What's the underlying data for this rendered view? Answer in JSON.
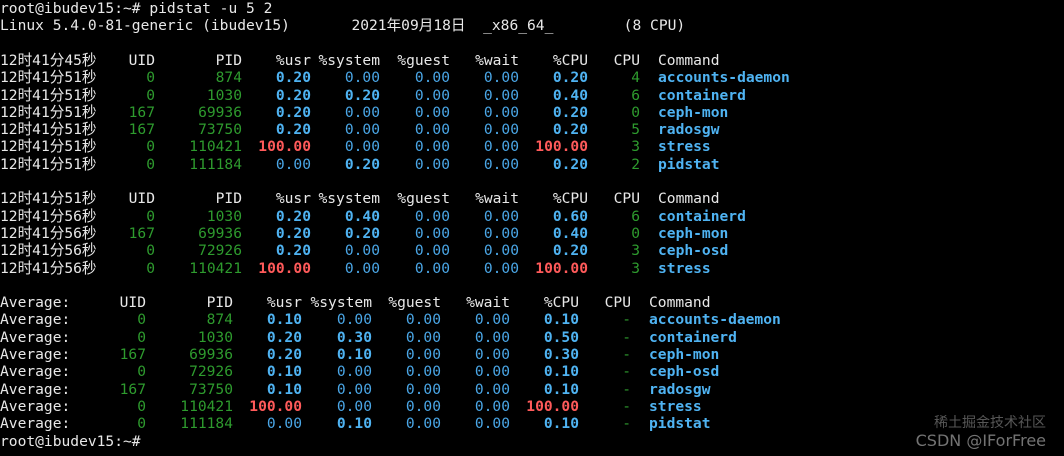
{
  "terminal": {
    "prompt_command": "root@ibudev15:~# pidstat -u 5 2",
    "system_info": "Linux 5.4.0-81-generic (ibudev15)       2021年09月18日  _x86_64_        (8 CPU)",
    "final_prompt": "root@ibudev15:~# "
  },
  "header": {
    "uid": "UID",
    "pid": "PID",
    "usr": "%usr",
    "system": "%system",
    "guest": "%guest",
    "wait": "%wait",
    "cpu_pct": "%CPU",
    "cpu": "CPU",
    "command": "Command"
  },
  "sample1": {
    "time": "12时41分45秒",
    "rows": [
      {
        "time": "12时41分51秒",
        "uid": "0",
        "pid": "874",
        "usr": "0.20",
        "system": "0.00",
        "guest": "0.00",
        "wait": "0.00",
        "cpu_pct": "0.20",
        "cpu": "4",
        "command": "accounts-daemon",
        "usr_red": false,
        "sys_hl": false,
        "cpu_red": false
      },
      {
        "time": "12时41分51秒",
        "uid": "0",
        "pid": "1030",
        "usr": "0.20",
        "system": "0.20",
        "guest": "0.00",
        "wait": "0.00",
        "cpu_pct": "0.40",
        "cpu": "6",
        "command": "containerd",
        "usr_red": false,
        "sys_hl": true,
        "cpu_red": false
      },
      {
        "time": "12时41分51秒",
        "uid": "167",
        "pid": "69936",
        "usr": "0.20",
        "system": "0.00",
        "guest": "0.00",
        "wait": "0.00",
        "cpu_pct": "0.20",
        "cpu": "0",
        "command": "ceph-mon",
        "usr_red": false,
        "sys_hl": false,
        "cpu_red": false
      },
      {
        "time": "12时41分51秒",
        "uid": "167",
        "pid": "73750",
        "usr": "0.20",
        "system": "0.00",
        "guest": "0.00",
        "wait": "0.00",
        "cpu_pct": "0.20",
        "cpu": "5",
        "command": "radosgw",
        "usr_red": false,
        "sys_hl": false,
        "cpu_red": false
      },
      {
        "time": "12时41分51秒",
        "uid": "0",
        "pid": "110421",
        "usr": "100.00",
        "system": "0.00",
        "guest": "0.00",
        "wait": "0.00",
        "cpu_pct": "100.00",
        "cpu": "3",
        "command": "stress",
        "usr_red": true,
        "sys_hl": false,
        "cpu_red": true
      },
      {
        "time": "12时41分51秒",
        "uid": "0",
        "pid": "111184",
        "usr": "0.00",
        "system": "0.20",
        "guest": "0.00",
        "wait": "0.00",
        "cpu_pct": "0.20",
        "cpu": "2",
        "command": "pidstat",
        "usr_red": false,
        "sys_hl": true,
        "cpu_red": false
      }
    ]
  },
  "sample2": {
    "time": "12时41分51秒",
    "rows": [
      {
        "time": "12时41分56秒",
        "uid": "0",
        "pid": "1030",
        "usr": "0.20",
        "system": "0.40",
        "guest": "0.00",
        "wait": "0.00",
        "cpu_pct": "0.60",
        "cpu": "6",
        "command": "containerd",
        "usr_red": false,
        "sys_hl": true,
        "cpu_red": false
      },
      {
        "time": "12时41分56秒",
        "uid": "167",
        "pid": "69936",
        "usr": "0.20",
        "system": "0.20",
        "guest": "0.00",
        "wait": "0.00",
        "cpu_pct": "0.40",
        "cpu": "0",
        "command": "ceph-mon",
        "usr_red": false,
        "sys_hl": true,
        "cpu_red": false
      },
      {
        "time": "12时41分56秒",
        "uid": "0",
        "pid": "72926",
        "usr": "0.20",
        "system": "0.00",
        "guest": "0.00",
        "wait": "0.00",
        "cpu_pct": "0.20",
        "cpu": "3",
        "command": "ceph-osd",
        "usr_red": false,
        "sys_hl": false,
        "cpu_red": false
      },
      {
        "time": "12时41分56秒",
        "uid": "0",
        "pid": "110421",
        "usr": "100.00",
        "system": "0.00",
        "guest": "0.00",
        "wait": "0.00",
        "cpu_pct": "100.00",
        "cpu": "3",
        "command": "stress",
        "usr_red": true,
        "sys_hl": false,
        "cpu_red": true
      }
    ]
  },
  "average": {
    "label": "Average:",
    "rows": [
      {
        "uid": "0",
        "pid": "874",
        "usr": "0.10",
        "system": "0.00",
        "guest": "0.00",
        "wait": "0.00",
        "cpu_pct": "0.10",
        "cpu": "-",
        "command": "accounts-daemon",
        "usr_red": false,
        "sys_hl": false,
        "cpu_red": false
      },
      {
        "uid": "0",
        "pid": "1030",
        "usr": "0.20",
        "system": "0.30",
        "guest": "0.00",
        "wait": "0.00",
        "cpu_pct": "0.50",
        "cpu": "-",
        "command": "containerd",
        "usr_red": false,
        "sys_hl": true,
        "cpu_red": false
      },
      {
        "uid": "167",
        "pid": "69936",
        "usr": "0.20",
        "system": "0.10",
        "guest": "0.00",
        "wait": "0.00",
        "cpu_pct": "0.30",
        "cpu": "-",
        "command": "ceph-mon",
        "usr_red": false,
        "sys_hl": true,
        "cpu_red": false
      },
      {
        "uid": "0",
        "pid": "72926",
        "usr": "0.10",
        "system": "0.00",
        "guest": "0.00",
        "wait": "0.00",
        "cpu_pct": "0.10",
        "cpu": "-",
        "command": "ceph-osd",
        "usr_red": false,
        "sys_hl": false,
        "cpu_red": false
      },
      {
        "uid": "167",
        "pid": "73750",
        "usr": "0.10",
        "system": "0.00",
        "guest": "0.00",
        "wait": "0.00",
        "cpu_pct": "0.10",
        "cpu": "-",
        "command": "radosgw",
        "usr_red": false,
        "sys_hl": false,
        "cpu_red": false
      },
      {
        "uid": "0",
        "pid": "110421",
        "usr": "100.00",
        "system": "0.00",
        "guest": "0.00",
        "wait": "0.00",
        "cpu_pct": "100.00",
        "cpu": "-",
        "command": "stress",
        "usr_red": true,
        "sys_hl": false,
        "cpu_red": true
      },
      {
        "uid": "0",
        "pid": "111184",
        "usr": "0.00",
        "system": "0.10",
        "guest": "0.00",
        "wait": "0.00",
        "cpu_pct": "0.10",
        "cpu": "-",
        "command": "pidstat",
        "usr_red": false,
        "sys_hl": true,
        "cpu_red": false
      }
    ]
  },
  "watermark": {
    "line1": "稀土掘金技术社区",
    "line2": "CSDN @IForFree"
  },
  "colors": {
    "background": "#000000",
    "text": "#e8e8e8",
    "uid_pid": "#2e9b2e",
    "highlight_value": "#4fb3f2",
    "normal_value": "#4aa6e6",
    "hot_value": "#ff5a5a"
  }
}
